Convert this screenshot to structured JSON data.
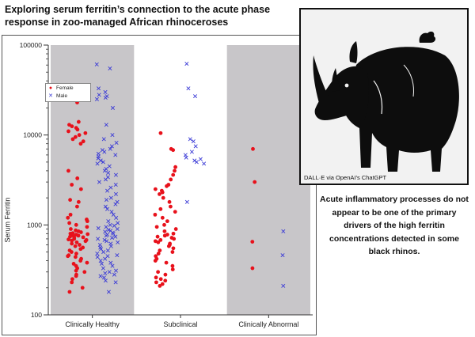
{
  "header": {
    "title": "Exploring serum ferritin’s connection to the acute phase response in zoo-managed African rhinoceroses"
  },
  "illustration": {
    "credit": "DALL·E via OpenAI’s ChatGPT",
    "subject": "black-rhinoceros"
  },
  "note": {
    "text": "Acute inflammatory processes do not appear to be one of the primary drivers of the high ferritin concentrations detected in some black rhinos."
  },
  "colors": {
    "female": "#e8111b",
    "male": "#3a3ad6",
    "shade": "#c8c6c9"
  },
  "chart_data": {
    "type": "scatter",
    "ylabel": "Serum Ferritin",
    "yscale": "log",
    "ylim": [
      100,
      100000
    ],
    "yticks": [
      "100",
      "1000",
      "10000",
      "100000"
    ],
    "categories": [
      "Clinically Healthy",
      "Subclinical",
      "Clinically Abnormal"
    ],
    "shaded": [
      true,
      false,
      true
    ],
    "legend": [
      "Female",
      "Male"
    ],
    "series": [
      {
        "name": "Female",
        "marker": "dot",
        "groups": [
          [
            23000,
            14000,
            13000,
            12500,
            12000,
            11500,
            11000,
            10500,
            10000,
            9500,
            9000,
            8500,
            8000,
            4000,
            3300,
            2800,
            2500,
            1900,
            1800,
            1600,
            1300,
            1200,
            1150,
            1100,
            1050,
            1000,
            950,
            900,
            870,
            850,
            830,
            810,
            800,
            790,
            780,
            770,
            760,
            750,
            740,
            730,
            720,
            700,
            690,
            680,
            670,
            660,
            640,
            620,
            600,
            580,
            560,
            540,
            520,
            500,
            480,
            460,
            450,
            440,
            420,
            400,
            380,
            370,
            350,
            330,
            310,
            300,
            280,
            270,
            250,
            230,
            200,
            180
          ],
          [
            10500,
            7000,
            6800,
            4400,
            4000,
            3600,
            3200,
            2800,
            2700,
            2500,
            2400,
            2300,
            2200,
            2000,
            1800,
            1600,
            1500,
            1400,
            1300,
            1200,
            1100,
            1000,
            950,
            900,
            850,
            800,
            780,
            760,
            740,
            720,
            700,
            680,
            660,
            640,
            620,
            600,
            580,
            550,
            520,
            500,
            480,
            450,
            420,
            400,
            380,
            350,
            320,
            300,
            280,
            260,
            250,
            240,
            230,
            220,
            210
          ],
          [
            7000,
            3000,
            650,
            330
          ]
        ]
      },
      {
        "name": "Male",
        "marker": "x",
        "groups": [
          [
            61000,
            55000,
            33000,
            30000,
            28000,
            27000,
            26000,
            25000,
            20000,
            13000,
            10000,
            9000,
            8200,
            7500,
            7000,
            6800,
            6500,
            6200,
            6000,
            5800,
            5500,
            5200,
            5000,
            4800,
            4500,
            4200,
            4000,
            3800,
            3600,
            3400,
            3200,
            3000,
            2800,
            2600,
            2400,
            2200,
            2000,
            1900,
            1800,
            1700,
            1600,
            1500,
            1400,
            1300,
            1200,
            1100,
            1050,
            1000,
            980,
            950,
            920,
            900,
            880,
            860,
            840,
            820,
            800,
            780,
            760,
            740,
            720,
            700,
            680,
            660,
            640,
            620,
            600,
            580,
            560,
            540,
            520,
            500,
            480,
            460,
            450,
            440,
            420,
            400,
            380,
            370,
            350,
            330,
            310,
            300,
            290,
            280,
            270,
            260,
            240,
            230,
            180
          ],
          [
            62000,
            33000,
            27000,
            9000,
            8500,
            7500,
            6500,
            6000,
            5600,
            5400,
            5200,
            5000,
            4800,
            1800
          ],
          [
            850,
            460,
            210
          ]
        ]
      }
    ]
  }
}
